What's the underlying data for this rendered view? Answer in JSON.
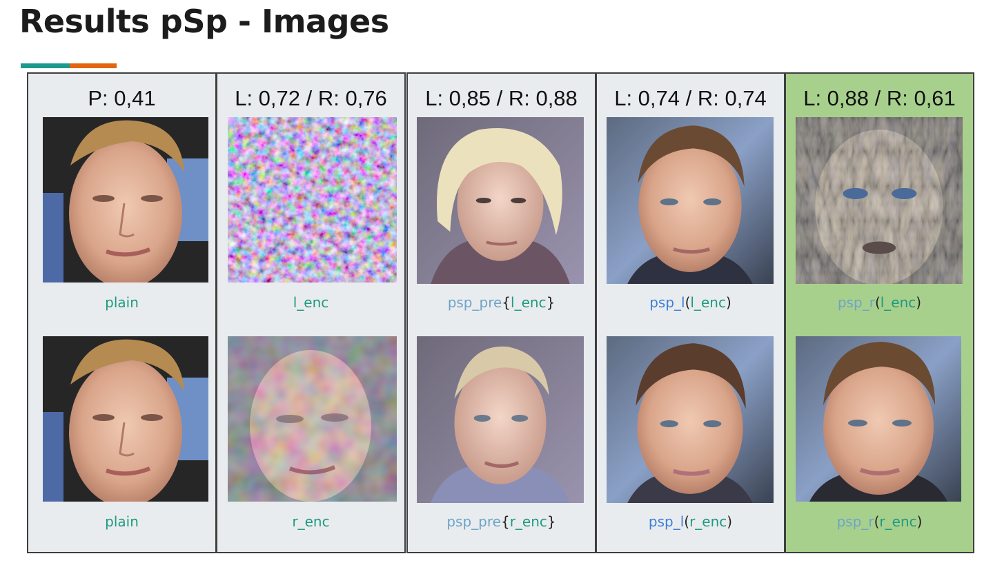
{
  "slide": {
    "title": "Results pSp - Images",
    "accent_colors": [
      "#1b9a8b",
      "#e4630f"
    ]
  },
  "panels": [
    {
      "score": "P: 0,41",
      "highlighted": false,
      "top_image": "face-photo-blond-man",
      "bottom_image": "face-photo-blond-man",
      "top_caption": [
        "plain"
      ],
      "bottom_caption": [
        "plain"
      ]
    },
    {
      "score": "L: 0,72 / R: 0,76",
      "highlighted": false,
      "top_image": "noise-pattern",
      "bottom_image": "distorted-face",
      "top_caption": [
        "l_enc"
      ],
      "bottom_caption": [
        "r_enc"
      ]
    },
    {
      "score": "L: 0,85 / R: 0,88",
      "highlighted": false,
      "top_image": "face-generated-blonde",
      "bottom_image": "face-generated-older",
      "top_caption": [
        "psp_pre",
        "{",
        "l_enc",
        "}"
      ],
      "bottom_caption": [
        "psp_pre",
        "{",
        "r_enc",
        "}"
      ]
    },
    {
      "score": "L: 0,74 / R: 0,74",
      "highlighted": false,
      "top_image": "face-generated-man",
      "bottom_image": "face-generated-man",
      "top_caption": [
        "psp_l",
        "(",
        "l_enc",
        ")"
      ],
      "bottom_caption": [
        "psp_l",
        "(",
        "r_enc",
        ")"
      ]
    },
    {
      "score": "L: 0,88 / R: 0,61",
      "highlighted": true,
      "top_image": "face-noisy-texture",
      "bottom_image": "face-generated-man",
      "top_caption": [
        "psp_r",
        "(",
        "l_enc",
        ")"
      ],
      "bottom_caption": [
        "psp_r",
        "(",
        "r_enc",
        ")"
      ]
    }
  ],
  "colors": {
    "panel_bg": "#e9ecee",
    "highlight_bg": "#a8d08d",
    "caption_green": "#1e9a82",
    "caption_lightblue": "#6ea4c8",
    "caption_blue": "#3d7fd9"
  }
}
